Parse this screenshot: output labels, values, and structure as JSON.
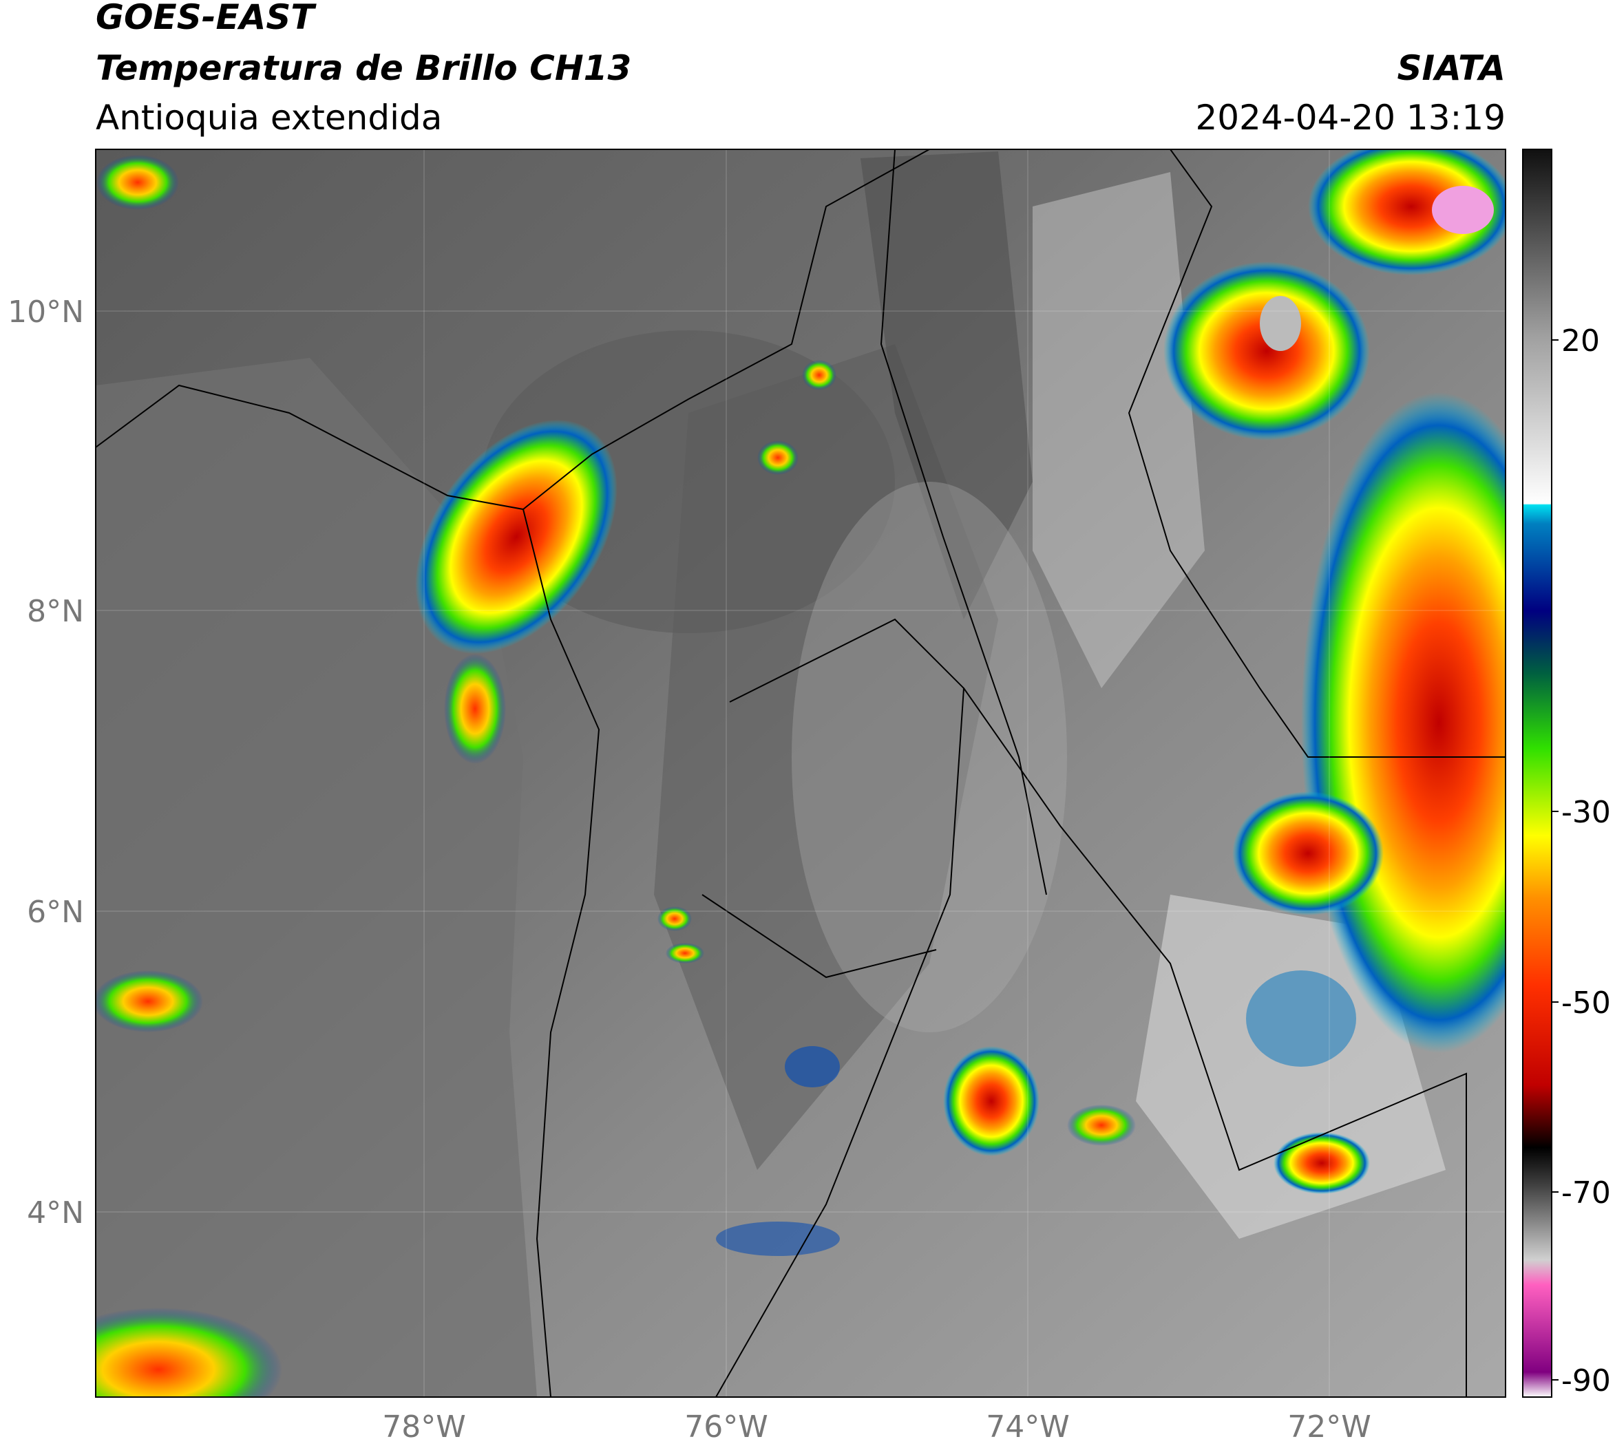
{
  "header": {
    "title_line1": "GOES-EAST",
    "title_line2": "Temperatura de Brillo CH13",
    "subtitle": "Antioquia extendida",
    "source": "SIATA",
    "datetime": "2024-04-20 13:19"
  },
  "map": {
    "lat_labels": [
      "10°N",
      "8°N",
      "6°N",
      "4°N"
    ],
    "lon_labels": [
      "78°W",
      "76°W",
      "74°W",
      "72°W"
    ]
  },
  "colorbar": {
    "ticks": [
      20,
      -30,
      -50,
      -70,
      -90
    ]
  }
}
